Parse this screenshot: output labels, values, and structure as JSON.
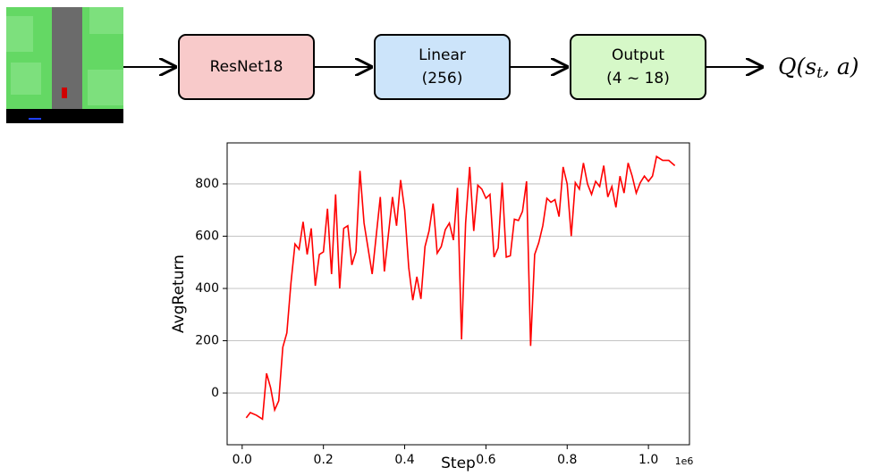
{
  "diagram": {
    "nodes": [
      {
        "lines": [
          "ResNet18"
        ]
      },
      {
        "lines": [
          "Linear",
          "(256)"
        ]
      },
      {
        "lines": [
          "Output",
          "(4 ~ 18)"
        ]
      }
    ],
    "output": {
      "prefix": "Q(s",
      "subscript": "t",
      "suffix": ", a)"
    }
  },
  "chart_data": {
    "type": "line",
    "ylabel": "AvgReturn",
    "xlabel": "Step",
    "x_offset_label": "1e6",
    "xlim": [
      -0.037,
      1.101
    ],
    "ylim": [
      -198,
      957
    ],
    "xticks": [
      {
        "value": 0,
        "label": "0.0"
      },
      {
        "value": 0.2,
        "label": "0.2"
      },
      {
        "value": 0.4,
        "label": "0.4"
      },
      {
        "value": 0.6,
        "label": "0.6"
      },
      {
        "value": 0.8,
        "label": "0.8"
      },
      {
        "value": 1,
        "label": "1.0"
      }
    ],
    "yticks": [
      0,
      200,
      400,
      600,
      800
    ],
    "grid": true,
    "series": [
      {
        "color": "#ff0000",
        "x": [
          0.01,
          0.02,
          0.035,
          0.05,
          0.06,
          0.07,
          0.08,
          0.09,
          0.1,
          0.11,
          0.12,
          0.13,
          0.14,
          0.15,
          0.16,
          0.17,
          0.18,
          0.19,
          0.2,
          0.21,
          0.22,
          0.23,
          0.24,
          0.25,
          0.26,
          0.27,
          0.28,
          0.29,
          0.3,
          0.32,
          0.34,
          0.35,
          0.37,
          0.38,
          0.39,
          0.4,
          0.41,
          0.42,
          0.43,
          0.44,
          0.45,
          0.46,
          0.47,
          0.48,
          0.49,
          0.5,
          0.51,
          0.52,
          0.53,
          0.54,
          0.55,
          0.56,
          0.57,
          0.58,
          0.59,
          0.6,
          0.61,
          0.62,
          0.63,
          0.64,
          0.65,
          0.66,
          0.67,
          0.68,
          0.69,
          0.7,
          0.71,
          0.72,
          0.73,
          0.74,
          0.75,
          0.76,
          0.77,
          0.78,
          0.79,
          0.8,
          0.81,
          0.82,
          0.83,
          0.84,
          0.85,
          0.86,
          0.87,
          0.88,
          0.89,
          0.9,
          0.91,
          0.92,
          0.93,
          0.94,
          0.95,
          0.96,
          0.97,
          0.98,
          0.99,
          1.0,
          1.01,
          1.02,
          1.035,
          1.05,
          1.065
        ],
        "values": [
          -95,
          -75,
          -85,
          -100,
          75,
          20,
          -65,
          -30,
          175,
          230,
          420,
          570,
          550,
          655,
          530,
          630,
          410,
          530,
          540,
          705,
          455,
          760,
          400,
          630,
          640,
          490,
          540,
          850,
          650,
          455,
          750,
          465,
          750,
          640,
          815,
          700,
          480,
          355,
          445,
          360,
          560,
          620,
          725,
          535,
          560,
          625,
          650,
          585,
          785,
          205,
          650,
          865,
          620,
          795,
          780,
          745,
          760,
          520,
          555,
          805,
          520,
          525,
          665,
          660,
          695,
          810,
          180,
          530,
          575,
          640,
          745,
          730,
          740,
          675,
          865,
          800,
          600,
          805,
          780,
          880,
          800,
          760,
          810,
          790,
          870,
          750,
          790,
          710,
          830,
          765,
          880,
          830,
          765,
          805,
          830,
          810,
          830,
          905,
          890,
          890,
          870
        ]
      }
    ]
  }
}
